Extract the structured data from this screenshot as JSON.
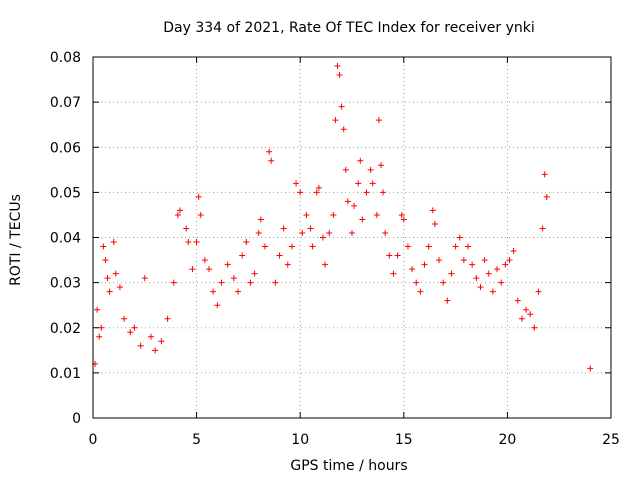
{
  "chart_data": {
    "type": "scatter",
    "title": "Day 334 of 2021, Rate Of TEC Index for receiver ynki",
    "xlabel": "GPS time / hours",
    "ylabel": "ROTI / TECUs",
    "xlim": [
      0,
      25
    ],
    "ylim": [
      0,
      0.08
    ],
    "x_ticks": [
      0,
      5,
      10,
      15,
      20,
      25
    ],
    "x_tick_labels": [
      "0",
      "5",
      "10",
      "15",
      "20",
      "25"
    ],
    "y_ticks": [
      0,
      0.01,
      0.02,
      0.03,
      0.04,
      0.05,
      0.06,
      0.07,
      0.08
    ],
    "y_tick_labels": [
      "0",
      "0.01",
      "0.02",
      "0.03",
      "0.04",
      "0.05",
      "0.06",
      "0.07",
      "0.08"
    ],
    "grid": true,
    "marker": "plus",
    "color": "#ff0000",
    "series": [
      {
        "points": [
          [
            0.1,
            0.012
          ],
          [
            0.2,
            0.024
          ],
          [
            0.3,
            0.018
          ],
          [
            0.4,
            0.02
          ],
          [
            0.5,
            0.038
          ],
          [
            0.6,
            0.035
          ],
          [
            0.7,
            0.031
          ],
          [
            0.8,
            0.028
          ],
          [
            1.0,
            0.039
          ],
          [
            1.1,
            0.032
          ],
          [
            1.3,
            0.029
          ],
          [
            1.5,
            0.022
          ],
          [
            1.8,
            0.019
          ],
          [
            2.0,
            0.02
          ],
          [
            2.3,
            0.016
          ],
          [
            2.5,
            0.031
          ],
          [
            2.8,
            0.018
          ],
          [
            3.0,
            0.015
          ],
          [
            3.3,
            0.017
          ],
          [
            3.6,
            0.022
          ],
          [
            3.9,
            0.03
          ],
          [
            4.1,
            0.045
          ],
          [
            4.2,
            0.046
          ],
          [
            4.5,
            0.042
          ],
          [
            4.6,
            0.039
          ],
          [
            4.8,
            0.033
          ],
          [
            5.0,
            0.039
          ],
          [
            5.1,
            0.049
          ],
          [
            5.2,
            0.045
          ],
          [
            5.4,
            0.035
          ],
          [
            5.6,
            0.033
          ],
          [
            5.8,
            0.028
          ],
          [
            6.0,
            0.025
          ],
          [
            6.2,
            0.03
          ],
          [
            6.5,
            0.034
          ],
          [
            6.8,
            0.031
          ],
          [
            7.0,
            0.028
          ],
          [
            7.2,
            0.036
          ],
          [
            7.4,
            0.039
          ],
          [
            7.6,
            0.03
          ],
          [
            7.8,
            0.032
          ],
          [
            8.0,
            0.041
          ],
          [
            8.1,
            0.044
          ],
          [
            8.3,
            0.038
          ],
          [
            8.5,
            0.059
          ],
          [
            8.6,
            0.057
          ],
          [
            8.8,
            0.03
          ],
          [
            9.0,
            0.036
          ],
          [
            9.2,
            0.042
          ],
          [
            9.4,
            0.034
          ],
          [
            9.6,
            0.038
          ],
          [
            9.8,
            0.052
          ],
          [
            10.0,
            0.05
          ],
          [
            10.1,
            0.041
          ],
          [
            10.3,
            0.045
          ],
          [
            10.5,
            0.042
          ],
          [
            10.6,
            0.038
          ],
          [
            10.8,
            0.05
          ],
          [
            10.9,
            0.051
          ],
          [
            11.1,
            0.04
          ],
          [
            11.2,
            0.034
          ],
          [
            11.4,
            0.041
          ],
          [
            11.6,
            0.045
          ],
          [
            11.7,
            0.066
          ],
          [
            11.8,
            0.078
          ],
          [
            11.9,
            0.076
          ],
          [
            12.0,
            0.069
          ],
          [
            12.1,
            0.064
          ],
          [
            12.2,
            0.055
          ],
          [
            12.3,
            0.048
          ],
          [
            12.5,
            0.041
          ],
          [
            12.6,
            0.047
          ],
          [
            12.8,
            0.052
          ],
          [
            12.9,
            0.057
          ],
          [
            13.0,
            0.044
          ],
          [
            13.2,
            0.05
          ],
          [
            13.4,
            0.055
          ],
          [
            13.5,
            0.052
          ],
          [
            13.7,
            0.045
          ],
          [
            13.8,
            0.066
          ],
          [
            13.9,
            0.056
          ],
          [
            14.0,
            0.05
          ],
          [
            14.1,
            0.041
          ],
          [
            14.3,
            0.036
          ],
          [
            14.5,
            0.032
          ],
          [
            14.7,
            0.036
          ],
          [
            14.9,
            0.045
          ],
          [
            15.0,
            0.044
          ],
          [
            15.2,
            0.038
          ],
          [
            15.4,
            0.033
          ],
          [
            15.6,
            0.03
          ],
          [
            15.8,
            0.028
          ],
          [
            16.0,
            0.034
          ],
          [
            16.2,
            0.038
          ],
          [
            16.4,
            0.046
          ],
          [
            16.5,
            0.043
          ],
          [
            16.7,
            0.035
          ],
          [
            16.9,
            0.03
          ],
          [
            17.1,
            0.026
          ],
          [
            17.3,
            0.032
          ],
          [
            17.5,
            0.038
          ],
          [
            17.7,
            0.04
          ],
          [
            17.9,
            0.035
          ],
          [
            18.1,
            0.038
          ],
          [
            18.3,
            0.034
          ],
          [
            18.5,
            0.031
          ],
          [
            18.7,
            0.029
          ],
          [
            18.9,
            0.035
          ],
          [
            19.1,
            0.032
          ],
          [
            19.3,
            0.028
          ],
          [
            19.5,
            0.033
          ],
          [
            19.7,
            0.03
          ],
          [
            19.9,
            0.034
          ],
          [
            20.1,
            0.035
          ],
          [
            20.3,
            0.037
          ],
          [
            20.5,
            0.026
          ],
          [
            20.7,
            0.022
          ],
          [
            20.9,
            0.024
          ],
          [
            21.1,
            0.023
          ],
          [
            21.3,
            0.02
          ],
          [
            21.5,
            0.028
          ],
          [
            21.7,
            0.042
          ],
          [
            21.8,
            0.054
          ],
          [
            21.9,
            0.049
          ],
          [
            24.0,
            0.011
          ]
        ]
      }
    ]
  }
}
